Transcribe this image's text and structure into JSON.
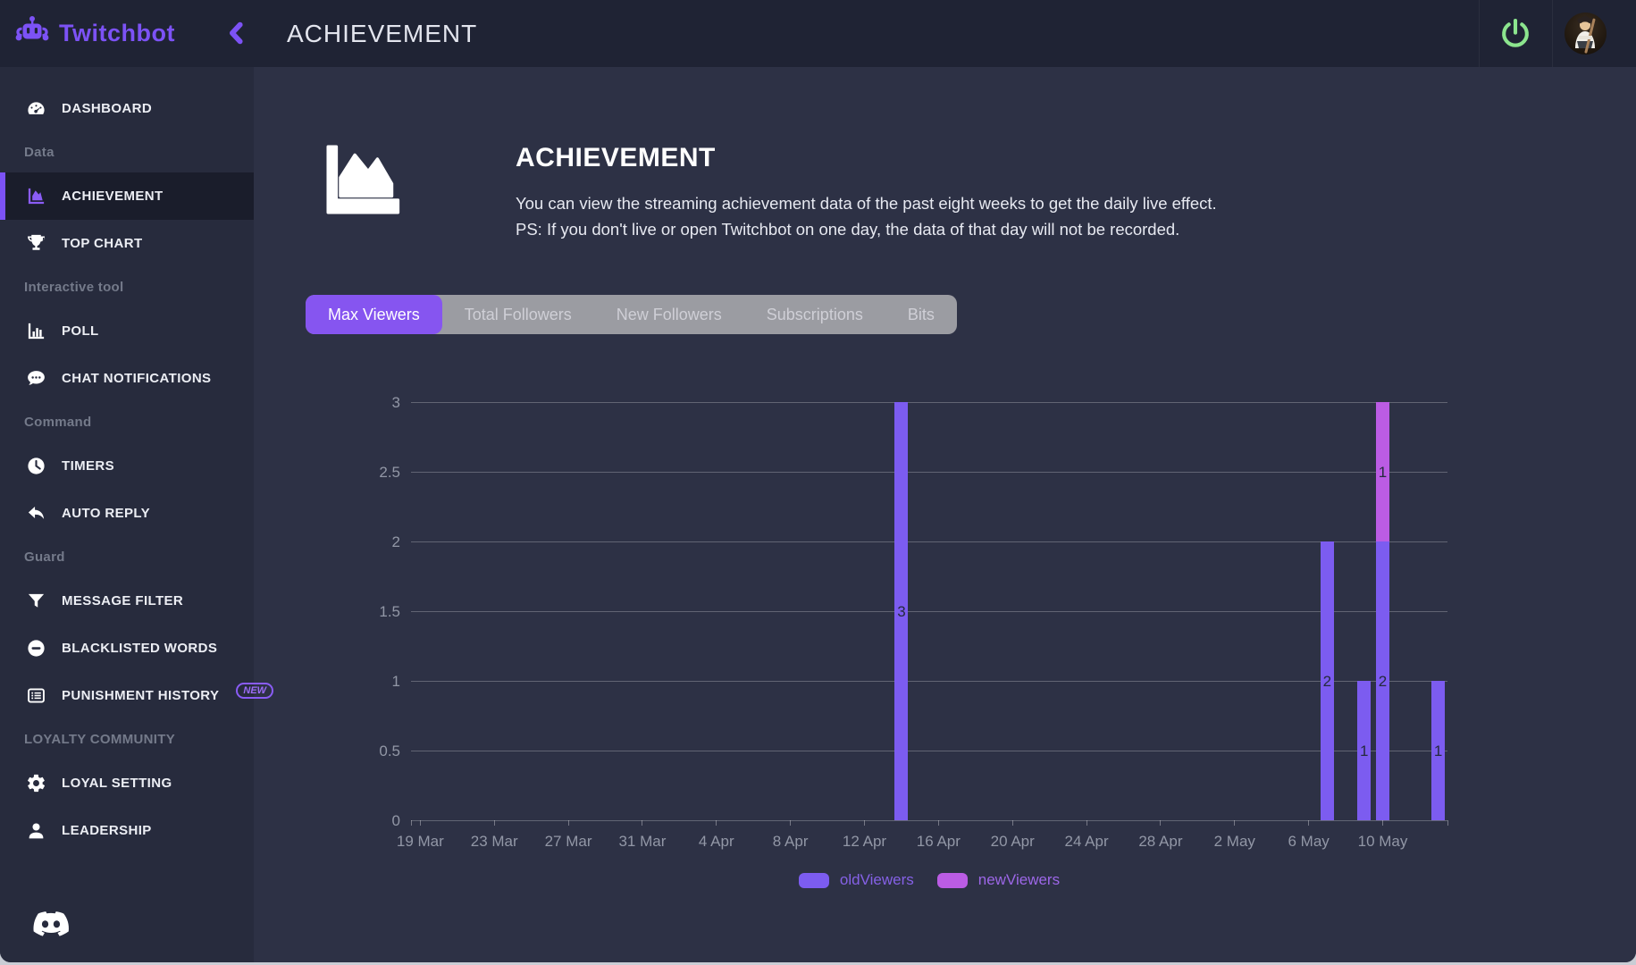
{
  "app": {
    "brand": "Twitchbot",
    "header_title": "ACHIEVEMENT"
  },
  "colors": {
    "accent_purple": "#7c52f5",
    "tab_active_purple": "#8655f0",
    "power_green": "#8ce58e",
    "old_viewers_purple": "#7c5cf0",
    "new_viewers_magenta": "#bb5ce4",
    "topbar_bg": "#1f2334",
    "sidebar_bg": "#272b3d",
    "main_bg": "#2d3145"
  },
  "sidebar": {
    "sections": [
      {
        "header": "",
        "items": [
          {
            "icon": "gauge",
            "label": "DASHBOARD"
          }
        ]
      },
      {
        "header": "Data",
        "items": [
          {
            "icon": "area-chart",
            "label": "ACHIEVEMENT",
            "active": true
          },
          {
            "icon": "trophy",
            "label": "TOP CHART"
          }
        ]
      },
      {
        "header": "Interactive tool",
        "items": [
          {
            "icon": "poll",
            "label": "POLL"
          },
          {
            "icon": "chat",
            "label": "CHAT NOTIFICATIONS"
          }
        ]
      },
      {
        "header": "Command",
        "items": [
          {
            "icon": "clock",
            "label": "TIMERS"
          },
          {
            "icon": "reply",
            "label": "AUTO REPLY"
          }
        ]
      },
      {
        "header": "Guard",
        "items": [
          {
            "icon": "funnel",
            "label": "MESSAGE FILTER"
          },
          {
            "icon": "minus-circle",
            "label": "BLACKLISTED WORDS"
          },
          {
            "icon": "list-card",
            "label": "PUNISHMENT HISTORY",
            "badge": "NEW"
          }
        ]
      },
      {
        "header": "LOYALTY COMMUNITY",
        "items": [
          {
            "icon": "gear",
            "label": "LOYAL SETTING"
          },
          {
            "icon": "person",
            "label": "LEADERSHIP"
          }
        ]
      }
    ]
  },
  "page": {
    "title": "ACHIEVEMENT",
    "description_line1": "You can view the streaming achievement data of the past eight weeks to get the daily live effect.",
    "description_line2": "PS: If you don't live or open Twitchbot on one day, the data of that day will not be recorded."
  },
  "tabs": [
    {
      "label": "Max Viewers",
      "active": true
    },
    {
      "label": "Total Followers",
      "active": false
    },
    {
      "label": "New Followers",
      "active": false
    },
    {
      "label": "Subscriptions",
      "active": false
    },
    {
      "label": "Bits",
      "active": false
    }
  ],
  "chart_data": {
    "type": "bar",
    "stacked": true,
    "title": "",
    "xlabel": "",
    "ylabel": "",
    "ylim": [
      0,
      3
    ],
    "y_ticks": [
      0,
      0.5,
      1,
      1.5,
      2,
      2.5,
      3
    ],
    "grid": true,
    "legend_position": "bottom",
    "x_axis_range_days": [
      -0.5,
      55.5
    ],
    "x_ticks": [
      {
        "label": "19 Mar",
        "day": 0
      },
      {
        "label": "23 Mar",
        "day": 4
      },
      {
        "label": "27 Mar",
        "day": 8
      },
      {
        "label": "31 Mar",
        "day": 12
      },
      {
        "label": "4 Apr",
        "day": 16
      },
      {
        "label": "8 Apr",
        "day": 20
      },
      {
        "label": "12 Apr",
        "day": 24
      },
      {
        "label": "16 Apr",
        "day": 28
      },
      {
        "label": "20 Apr",
        "day": 32
      },
      {
        "label": "24 Apr",
        "day": 36
      },
      {
        "label": "28 Apr",
        "day": 40
      },
      {
        "label": "2 May",
        "day": 44
      },
      {
        "label": "6 May",
        "day": 48
      },
      {
        "label": "10 May",
        "day": 52
      },
      {
        "label": "",
        "day": -0.5
      },
      {
        "label": "",
        "day": 55.5
      }
    ],
    "series": [
      {
        "name": "oldViewers",
        "color": "#7c5cf0",
        "label_color": "#8561e6"
      },
      {
        "name": "newViewers",
        "color": "#bb5ce4",
        "label_color": "#9d67e8"
      }
    ],
    "bars": [
      {
        "date": "14 Apr",
        "day_offset": 26,
        "values": {
          "oldViewers": 3,
          "newViewers": 0
        }
      },
      {
        "date": "7 May",
        "day_offset": 49,
        "values": {
          "oldViewers": 2,
          "newViewers": 0
        }
      },
      {
        "date": "9 May",
        "day_offset": 51,
        "values": {
          "oldViewers": 1,
          "newViewers": 0
        }
      },
      {
        "date": "10 May",
        "day_offset": 52,
        "values": {
          "oldViewers": 2,
          "newViewers": 1
        }
      },
      {
        "date": "13 May",
        "day_offset": 55,
        "values": {
          "oldViewers": 1,
          "newViewers": 0
        }
      }
    ]
  }
}
